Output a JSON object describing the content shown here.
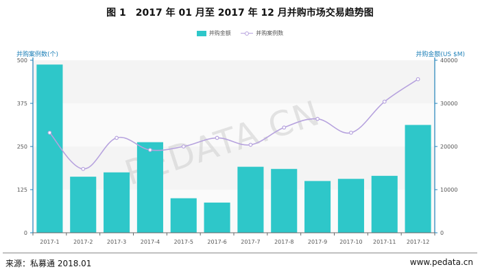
{
  "title": "图 1　2017 年 01 月至 2017 年 12 月并购市场交易趋势图",
  "legend": {
    "bar": "并购金额",
    "line": "并购案例数"
  },
  "left_axis_title": "并购案例数(个)",
  "right_axis_title": "并购金额(US $M)",
  "watermark": "PEDATA.CN",
  "source": "来源：私募通  2018.01",
  "website": "www.pedata.cn",
  "colors": {
    "bar": "#2ec7c9",
    "line": "#b6a2de",
    "axis": "#1c7fb7"
  },
  "chart_data": {
    "type": "bar",
    "categories": [
      "2017-1",
      "2017-2",
      "2017-3",
      "2017-4",
      "2017-5",
      "2017-6",
      "2017-7",
      "2017-8",
      "2017-9",
      "2017-10",
      "2017-11",
      "2017-12"
    ],
    "series": [
      {
        "name": "并购金额",
        "type": "bar",
        "axis": "right",
        "values": [
          39000,
          13000,
          14000,
          21000,
          8000,
          7000,
          15300,
          14800,
          12000,
          12500,
          13200,
          25000
        ]
      },
      {
        "name": "并购案例数",
        "type": "line",
        "axis": "left",
        "values": [
          290,
          185,
          275,
          240,
          250,
          275,
          255,
          305,
          330,
          290,
          380,
          445
        ]
      }
    ],
    "left_axis": {
      "min": 0,
      "max": 500,
      "ticks": [
        0,
        125,
        250,
        375,
        500
      ]
    },
    "right_axis": {
      "min": 0,
      "max": 40000,
      "ticks": [
        0,
        10000,
        20000,
        30000,
        40000
      ]
    },
    "grid": "horizontal bands"
  }
}
